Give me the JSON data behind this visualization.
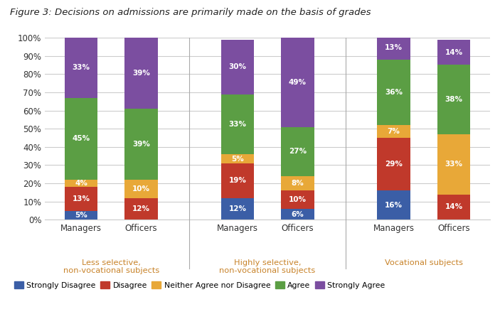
{
  "title": "Figure 3: Decisions on admissions are primarily made on the basis of grades",
  "groups": [
    {
      "label": "Managers",
      "group": "Less selective,\nnon-vocational subjects"
    },
    {
      "label": "Officers",
      "group": "Less selective,\nnon-vocational subjects"
    },
    {
      "label": "Managers",
      "group": "Highly selective,\nnon-vocational subjects"
    },
    {
      "label": "Officers",
      "group": "Highly selective,\nnon-vocational subjects"
    },
    {
      "label": "Managers",
      "group": "Vocational subjects"
    },
    {
      "label": "Officers",
      "group": "Vocational subjects"
    }
  ],
  "group_labels": [
    "Less selective,\nnon-vocational subjects",
    "Highly selective,\nnon-vocational subjects",
    "Vocational subjects"
  ],
  "categories": [
    "Strongly Disagree",
    "Disagree",
    "Neither Agree nor Disagree",
    "Agree",
    "Strongly Agree"
  ],
  "colors": [
    "#3B5EA6",
    "#C0392B",
    "#E8A838",
    "#5B9E44",
    "#7B4EA0"
  ],
  "data": [
    [
      5,
      13,
      4,
      45,
      33
    ],
    [
      0,
      12,
      10,
      39,
      39
    ],
    [
      12,
      19,
      5,
      33,
      30
    ],
    [
      6,
      10,
      8,
      27,
      49
    ],
    [
      16,
      29,
      7,
      36,
      13
    ],
    [
      0,
      14,
      33,
      38,
      14
    ]
  ],
  "bar_width": 0.55,
  "figsize": [
    7.03,
    4.42
  ],
  "dpi": 100,
  "background_color": "#FFFFFF",
  "ylim": [
    0,
    100
  ],
  "yticks": [
    0,
    10,
    20,
    30,
    40,
    50,
    60,
    70,
    80,
    90,
    100
  ],
  "ytick_labels": [
    "0%",
    "10%",
    "20%",
    "30%",
    "40%",
    "50%",
    "60%",
    "70%",
    "80%",
    "90%",
    "100%"
  ],
  "group_label_color": "#C8832A",
  "separator_color": "#aaaaaa",
  "x_positions": [
    0,
    1,
    2.6,
    3.6,
    5.2,
    6.2
  ],
  "group_centers": [
    0.5,
    3.1,
    5.7
  ]
}
